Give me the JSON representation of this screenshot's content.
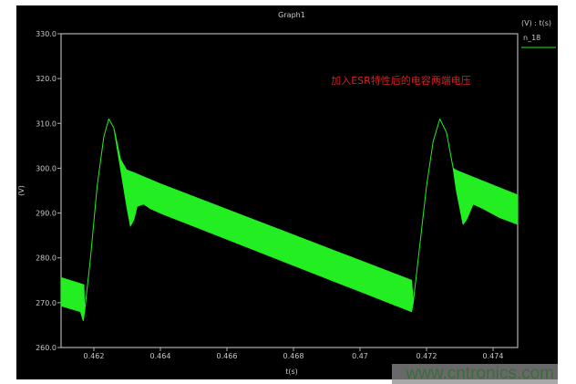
{
  "chart_data": {
    "type": "area",
    "title": "Graph1",
    "xlabel": "t(s)",
    "ylabel": "(V)",
    "xlim": [
      0.461014,
      0.47474
    ],
    "ylim": [
      260,
      330
    ],
    "xticks": [
      0.462,
      0.464,
      0.466,
      0.468,
      0.47,
      0.472,
      0.474
    ],
    "xtick_labels": [
      "0.462",
      "0.464",
      "0.466",
      "0.468",
      "0.47",
      "0.472",
      "0.474"
    ],
    "yticks": [
      260,
      270,
      280,
      290,
      300,
      310,
      320,
      330
    ],
    "ytick_labels": [
      "260.0",
      "270.0",
      "280.0",
      "290.0",
      "300.0",
      "310.0",
      "320.0",
      "330.0"
    ],
    "grid": false,
    "legend": {
      "header": "(V) : t(s)",
      "placement": "top-right",
      "entries": [
        {
          "name": "n_18",
          "color": "#22ee22"
        }
      ]
    },
    "annotation": {
      "text": "加入ESR特性后的电容两端电压",
      "color": "#d42020"
    },
    "series": [
      {
        "name": "n_18",
        "color": "#22ee22",
        "upper": [
          [
            0.461014,
            275.6
          ],
          [
            0.4617,
            274
          ],
          [
            0.46172,
            268
          ],
          [
            0.4619,
            280
          ],
          [
            0.4621,
            296
          ],
          [
            0.4623,
            307
          ],
          [
            0.46245,
            311
          ],
          [
            0.4626,
            309
          ],
          [
            0.4628,
            302
          ],
          [
            0.46298,
            299.6
          ],
          [
            0.4632,
            299
          ],
          [
            0.464,
            296.5
          ],
          [
            0.47155,
            275
          ],
          [
            0.4716,
            270
          ],
          [
            0.4718,
            283
          ],
          [
            0.472,
            296
          ],
          [
            0.4722,
            306
          ],
          [
            0.4724,
            311
          ],
          [
            0.4726,
            308
          ],
          [
            0.4728,
            300
          ],
          [
            0.4729,
            299.5
          ],
          [
            0.47474,
            294
          ]
        ],
        "lower": [
          [
            0.461014,
            269.3
          ],
          [
            0.4616,
            268
          ],
          [
            0.46168,
            266
          ],
          [
            0.46172,
            268
          ],
          [
            0.4619,
            280
          ],
          [
            0.4621,
            296
          ],
          [
            0.4623,
            307
          ],
          [
            0.46245,
            311
          ],
          [
            0.4626,
            309
          ],
          [
            0.4628,
            300
          ],
          [
            0.463,
            291
          ],
          [
            0.4631,
            287.1
          ],
          [
            0.4632,
            288.5
          ],
          [
            0.4633,
            291.5
          ],
          [
            0.4635,
            292
          ],
          [
            0.4637,
            291
          ],
          [
            0.464,
            290
          ],
          [
            0.47155,
            268
          ],
          [
            0.4716,
            270
          ],
          [
            0.4718,
            283
          ],
          [
            0.472,
            296
          ],
          [
            0.4722,
            306
          ],
          [
            0.4724,
            311
          ],
          [
            0.4726,
            308
          ],
          [
            0.4728,
            300
          ],
          [
            0.4729,
            295
          ],
          [
            0.4731,
            287.5
          ],
          [
            0.4732,
            288.5
          ],
          [
            0.4734,
            292
          ],
          [
            0.4737,
            291
          ],
          [
            0.4742,
            289
          ],
          [
            0.47474,
            287.5
          ]
        ]
      }
    ]
  },
  "watermark": "www.cntronics.com"
}
